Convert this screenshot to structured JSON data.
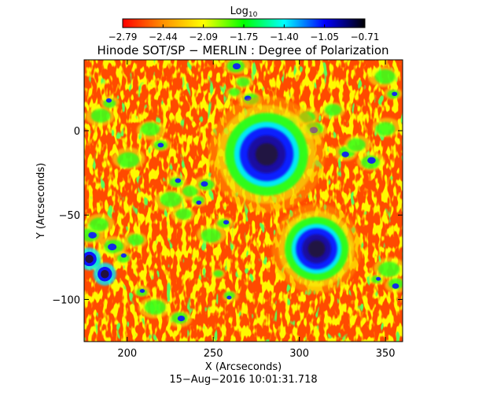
{
  "colorbar": {
    "label": "Log",
    "label_subscript": "10",
    "tick_labels": [
      "−2.79",
      "−2.44",
      "−2.09",
      "−1.75",
      "−1.40",
      "−1.05",
      "−0.71"
    ],
    "colors": [
      "#ff0000",
      "#ff9000",
      "#ffff00",
      "#00ff00",
      "#00ffff",
      "#0000ff",
      "#000000"
    ]
  },
  "image": {
    "title": "Hinode SOT/SP − MERLIN : Degree of Polarization",
    "timestamp": "15−Aug−2016 10:01:31.718",
    "xlabel": "X (Arcseconds)",
    "ylabel": "Y (Arcseconds)",
    "xlim": [
      175,
      360
    ],
    "ylim": [
      -125,
      42
    ],
    "x_ticks": [
      200,
      250,
      300,
      350
    ],
    "y_ticks": [
      0,
      -50,
      -100
    ],
    "x_tick_labels": [
      "200",
      "250",
      "300",
      "350"
    ],
    "y_tick_labels": [
      "0",
      "−50",
      "−100"
    ],
    "palette": {
      "quiet": "#ff4a00",
      "orange": "#ff9a00",
      "yellow": "#f5ff10",
      "green": "#26ff1a",
      "cyan": "#00e8ff",
      "blue": "#0b16ff",
      "navy": "#1a0c9c",
      "dark": "#24123e"
    },
    "features": {
      "sunspots": [
        {
          "x": 281,
          "y": -14,
          "radius": 13
        },
        {
          "x": 310,
          "y": -70,
          "radius": 10
        }
      ],
      "pores": [
        {
          "x": 178,
          "y": -76,
          "radius": 3
        },
        {
          "x": 187,
          "y": -85,
          "radius": 3
        }
      ]
    }
  }
}
